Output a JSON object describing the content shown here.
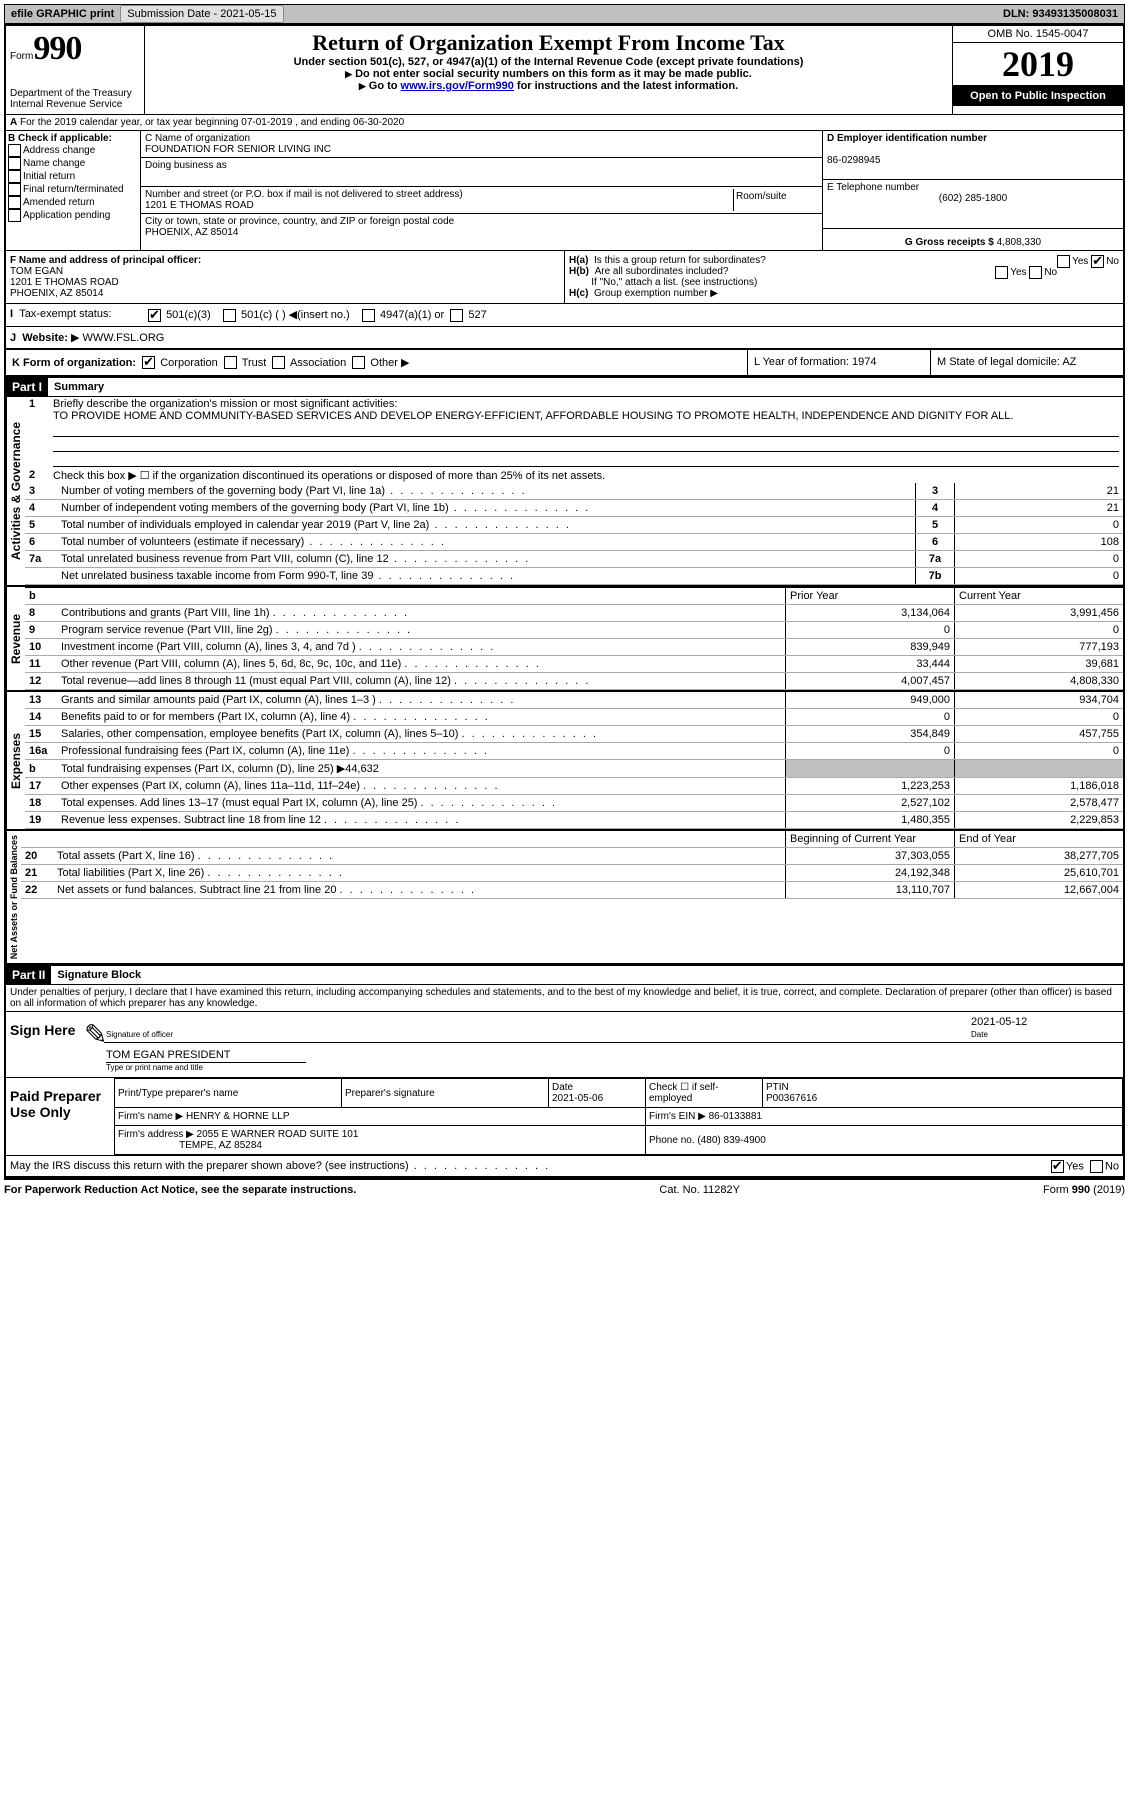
{
  "topbar": {
    "efile": "efile GRAPHIC print",
    "submission_label": "Submission Date - 2021-05-15",
    "dln": "DLN: 93493135008031"
  },
  "header": {
    "form_word": "Form",
    "form_num": "990",
    "dept": "Department of the Treasury",
    "irs": "Internal Revenue Service",
    "title": "Return of Organization Exempt From Income Tax",
    "sub1": "Under section 501(c), 527, or 4947(a)(1) of the Internal Revenue Code (except private foundations)",
    "sub2": "Do not enter social security numbers on this form as it may be made public.",
    "sub3_pre": "Go to ",
    "sub3_link": "www.irs.gov/Form990",
    "sub3_post": " for instructions and the latest information.",
    "omb": "OMB No. 1545-0047",
    "year": "2019",
    "open": "Open to Public Inspection"
  },
  "lineA": "For the 2019 calendar year, or tax year beginning 07-01-2019    , and ending 06-30-2020",
  "checkB": {
    "title": "B Check if applicable:",
    "items": [
      "Address change",
      "Name change",
      "Initial return",
      "Final return/terminated",
      "Amended return",
      "Application pending"
    ]
  },
  "blockC": {
    "label_name": "C Name of organization",
    "name": "FOUNDATION FOR SENIOR LIVING INC",
    "dba_label": "Doing business as",
    "addr_label": "Number and street (or P.O. box if mail is not delivered to street address)",
    "room_label": "Room/suite",
    "addr": "1201 E THOMAS ROAD",
    "city_label": "City or town, state or province, country, and ZIP or foreign postal code",
    "city": "PHOENIX, AZ  85014"
  },
  "blockD": {
    "label": "D Employer identification number",
    "val": "86-0298945"
  },
  "blockE": {
    "label": "E Telephone number",
    "val": "(602) 285-1800"
  },
  "blockG": {
    "label": "G Gross receipts $ ",
    "val": "4,808,330"
  },
  "blockF": {
    "label": "F  Name and address of principal officer:",
    "name": "TOM EGAN",
    "addr1": "1201 E THOMAS ROAD",
    "addr2": "PHOENIX, AZ  85014"
  },
  "blockH": {
    "a": "Is this a group return for subordinates?",
    "b": "Are all subordinates included?",
    "b_note": "If \"No,\" attach a list. (see instructions)",
    "c": "Group exemption number"
  },
  "rowI_label": "Tax-exempt status:",
  "rowI_opts": [
    "501(c)(3)",
    "501(c) (  ) ◀(insert no.)",
    "4947(a)(1) or",
    "527"
  ],
  "rowJ": {
    "label": "Website:",
    "val": "WWW.FSL.ORG"
  },
  "rowK": {
    "label": "K Form of organization:",
    "opts": [
      "Corporation",
      "Trust",
      "Association",
      "Other"
    ],
    "L": "L Year of formation: 1974",
    "M": "M State of legal domicile: AZ"
  },
  "part1": {
    "header": "Part I",
    "title": "Summary",
    "mission_label": "Briefly describe the organization's mission or most significant activities:",
    "mission": "TO PROVIDE HOME AND COMMUNITY-BASED SERVICES AND DEVELOP ENERGY-EFFICIENT, AFFORDABLE HOUSING TO PROMOTE HEALTH, INDEPENDENCE AND DIGNITY FOR ALL.",
    "line2": "Check this box ▶ ☐  if the organization discontinued its operations or disposed of more than 25% of its net assets.",
    "gov_lines": [
      {
        "n": "3",
        "t": "Number of voting members of the governing body (Part VI, line 1a)",
        "box": "3",
        "v": "21"
      },
      {
        "n": "4",
        "t": "Number of independent voting members of the governing body (Part VI, line 1b)",
        "box": "4",
        "v": "21"
      },
      {
        "n": "5",
        "t": "Total number of individuals employed in calendar year 2019 (Part V, line 2a)",
        "box": "5",
        "v": "0"
      },
      {
        "n": "6",
        "t": "Total number of volunteers (estimate if necessary)",
        "box": "6",
        "v": "108"
      },
      {
        "n": "7a",
        "t": "Total unrelated business revenue from Part VIII, column (C), line 12",
        "box": "7a",
        "v": "0"
      },
      {
        "n": "",
        "t": "Net unrelated business taxable income from Form 990-T, line 39",
        "box": "7b",
        "v": "0"
      }
    ],
    "col_prior": "Prior Year",
    "col_current": "Current Year",
    "rev": [
      {
        "n": "8",
        "t": "Contributions and grants (Part VIII, line 1h)",
        "p": "3,134,064",
        "c": "3,991,456"
      },
      {
        "n": "9",
        "t": "Program service revenue (Part VIII, line 2g)",
        "p": "0",
        "c": "0"
      },
      {
        "n": "10",
        "t": "Investment income (Part VIII, column (A), lines 3, 4, and 7d )",
        "p": "839,949",
        "c": "777,193"
      },
      {
        "n": "11",
        "t": "Other revenue (Part VIII, column (A), lines 5, 6d, 8c, 9c, 10c, and 11e)",
        "p": "33,444",
        "c": "39,681"
      },
      {
        "n": "12",
        "t": "Total revenue—add lines 8 through 11 (must equal Part VIII, column (A), line 12)",
        "p": "4,007,457",
        "c": "4,808,330"
      }
    ],
    "exp": [
      {
        "n": "13",
        "t": "Grants and similar amounts paid (Part IX, column (A), lines 1–3 )",
        "p": "949,000",
        "c": "934,704"
      },
      {
        "n": "14",
        "t": "Benefits paid to or for members (Part IX, column (A), line 4)",
        "p": "0",
        "c": "0"
      },
      {
        "n": "15",
        "t": "Salaries, other compensation, employee benefits (Part IX, column (A), lines 5–10)",
        "p": "354,849",
        "c": "457,755"
      },
      {
        "n": "16a",
        "t": "Professional fundraising fees (Part IX, column (A), line 11e)",
        "p": "0",
        "c": "0"
      },
      {
        "n": "b",
        "t": "Total fundraising expenses (Part IX, column (D), line 25) ▶44,632",
        "p": "",
        "c": "",
        "shade": true
      },
      {
        "n": "17",
        "t": "Other expenses (Part IX, column (A), lines 11a–11d, 11f–24e)",
        "p": "1,223,253",
        "c": "1,186,018"
      },
      {
        "n": "18",
        "t": "Total expenses. Add lines 13–17 (must equal Part IX, column (A), line 25)",
        "p": "2,527,102",
        "c": "2,578,477"
      },
      {
        "n": "19",
        "t": "Revenue less expenses. Subtract line 18 from line 12",
        "p": "1,480,355",
        "c": "2,229,853"
      }
    ],
    "col_begin": "Beginning of Current Year",
    "col_end": "End of Year",
    "net": [
      {
        "n": "20",
        "t": "Total assets (Part X, line 16)",
        "p": "37,303,055",
        "c": "38,277,705"
      },
      {
        "n": "21",
        "t": "Total liabilities (Part X, line 26)",
        "p": "24,192,348",
        "c": "25,610,701"
      },
      {
        "n": "22",
        "t": "Net assets or fund balances. Subtract line 21 from line 20",
        "p": "13,110,707",
        "c": "12,667,004"
      }
    ],
    "vert_gov": "Activities & Governance",
    "vert_rev": "Revenue",
    "vert_exp": "Expenses",
    "vert_net": "Net Assets or Fund Balances"
  },
  "part2": {
    "header": "Part II",
    "title": "Signature Block",
    "penalty": "Under penalties of perjury, I declare that I have examined this return, including accompanying schedules and statements, and to the best of my knowledge and belief, it is true, correct, and complete. Declaration of preparer (other than officer) is based on all information of which preparer has any knowledge.",
    "sign_here": "Sign Here",
    "sig_officer": "Signature of officer",
    "sig_date": "2021-05-12",
    "sig_date_label": "Date",
    "sig_name": "TOM EGAN  PRESIDENT",
    "sig_name_label": "Type or print name and title",
    "paid": "Paid Preparer Use Only",
    "p_name_label": "Print/Type preparer's name",
    "p_sig_label": "Preparer's signature",
    "p_date_label": "Date",
    "p_date": "2021-05-06",
    "p_check": "Check ☐ if self-employed",
    "p_ptin_label": "PTIN",
    "p_ptin": "P00367616",
    "firm_name_label": "Firm's name     ▶",
    "firm_name": "HENRY & HORNE LLP",
    "firm_ein_label": "Firm's EIN ▶",
    "firm_ein": "86-0133881",
    "firm_addr_label": "Firm's address ▶",
    "firm_addr": "2055 E WARNER ROAD SUITE 101",
    "firm_city": "TEMPE, AZ  85284",
    "phone_label": "Phone no.",
    "phone": "(480) 839-4900",
    "discuss": "May the IRS discuss this return with the preparer shown above? (see instructions)"
  },
  "footer": {
    "left": "For Paperwork Reduction Act Notice, see the separate instructions.",
    "mid": "Cat. No. 11282Y",
    "right": "Form 990 (2019)"
  }
}
